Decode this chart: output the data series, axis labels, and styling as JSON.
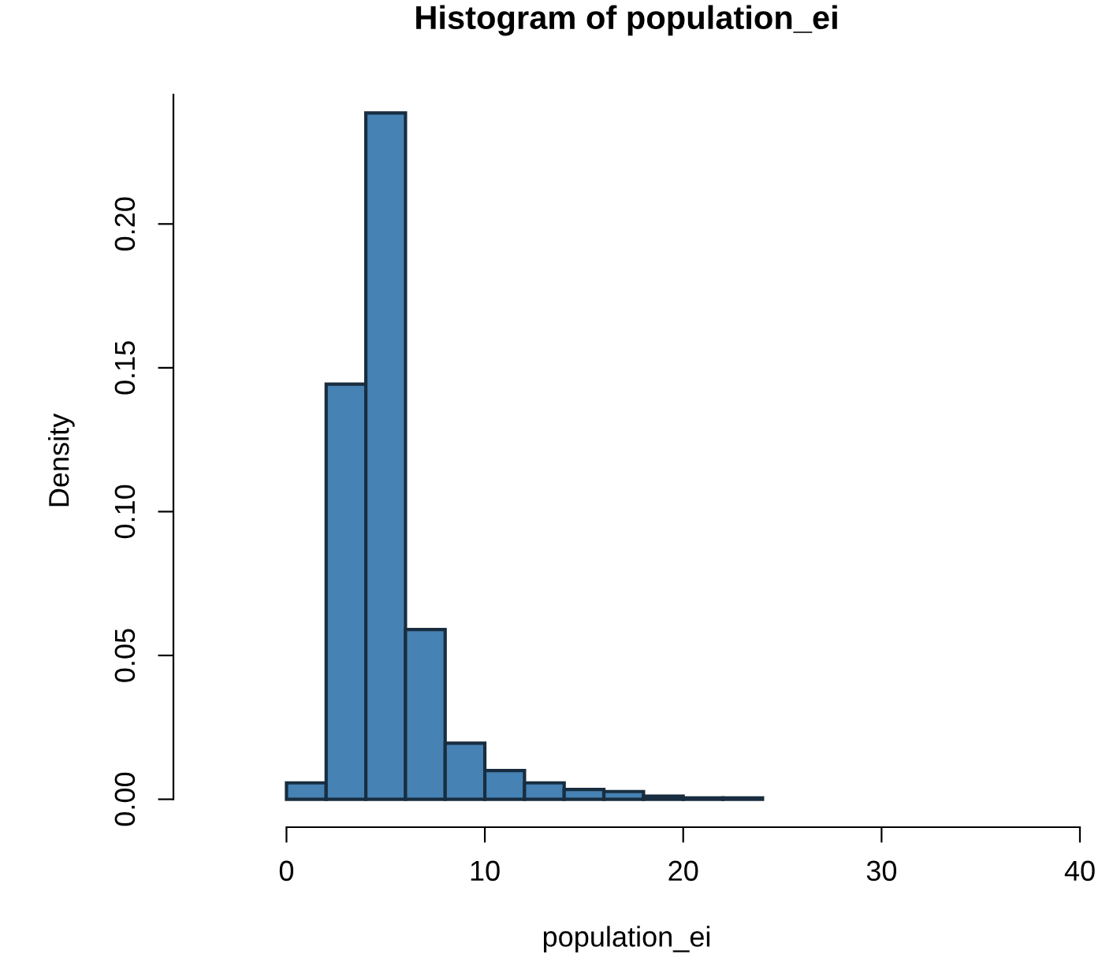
{
  "chart_data": {
    "type": "histogram",
    "title": "Histogram of population_ei",
    "xlabel": "population_ei",
    "ylabel": "Density",
    "bins": [
      0,
      2,
      4,
      6,
      8,
      10,
      12,
      14,
      16,
      18,
      20,
      22,
      24
    ],
    "values": [
      0.0057,
      0.1443,
      0.2386,
      0.059,
      0.0195,
      0.01,
      0.0057,
      0.0034,
      0.0027,
      0.0011,
      0.0005,
      0.0005
    ],
    "color": "#4682b4",
    "xlim": [
      -5.7,
      40
    ],
    "ylim": [
      -0.0097,
      0.245
    ],
    "xticks": [
      0,
      10,
      20,
      30,
      40
    ],
    "yticks": [
      {
        "value": 0,
        "label": "0.00"
      },
      {
        "value": 0.05,
        "label": "0.05"
      },
      {
        "value": 0.1,
        "label": "0.10"
      },
      {
        "value": 0.15,
        "label": "0.15"
      },
      {
        "value": 0.2,
        "label": "0.20"
      }
    ],
    "grid": false
  }
}
